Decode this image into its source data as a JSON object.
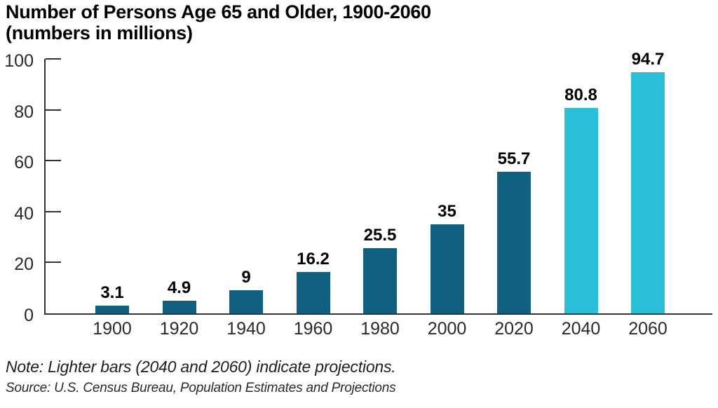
{
  "title": {
    "line1": "Number of Persons Age 65 and Older, 1900-2060",
    "line2": "(numbers in millions)"
  },
  "chart_data": {
    "type": "bar",
    "title": "Number of Persons Age 65 and Older, 1900-2060 (numbers in millions)",
    "categories": [
      "1900",
      "1920",
      "1940",
      "1960",
      "1980",
      "2000",
      "2020",
      "2040",
      "2060"
    ],
    "values": [
      3.1,
      4.9,
      9,
      16.2,
      25.5,
      35,
      55.7,
      80.8,
      94.7
    ],
    "bar_labels": [
      "3.1",
      "4.9",
      "9",
      "16.2",
      "25.5",
      "35",
      "55.7",
      "80.8",
      "94.7"
    ],
    "projection_categories": [
      "2040",
      "2060"
    ],
    "bar_color_historical": "#10607f",
    "bar_color_projection": "#2abfd9",
    "axis_color": "#333333",
    "xlabel": "",
    "ylabel": "",
    "ylim": [
      0,
      100
    ],
    "yticks": [
      0,
      20,
      40,
      60,
      80,
      100
    ],
    "grid": "off",
    "legend": "none"
  },
  "note": "Note: Lighter bars (2040 and 2060) indicate projections.",
  "source": "Source: U.S. Census Bureau, Population Estimates and Projections"
}
